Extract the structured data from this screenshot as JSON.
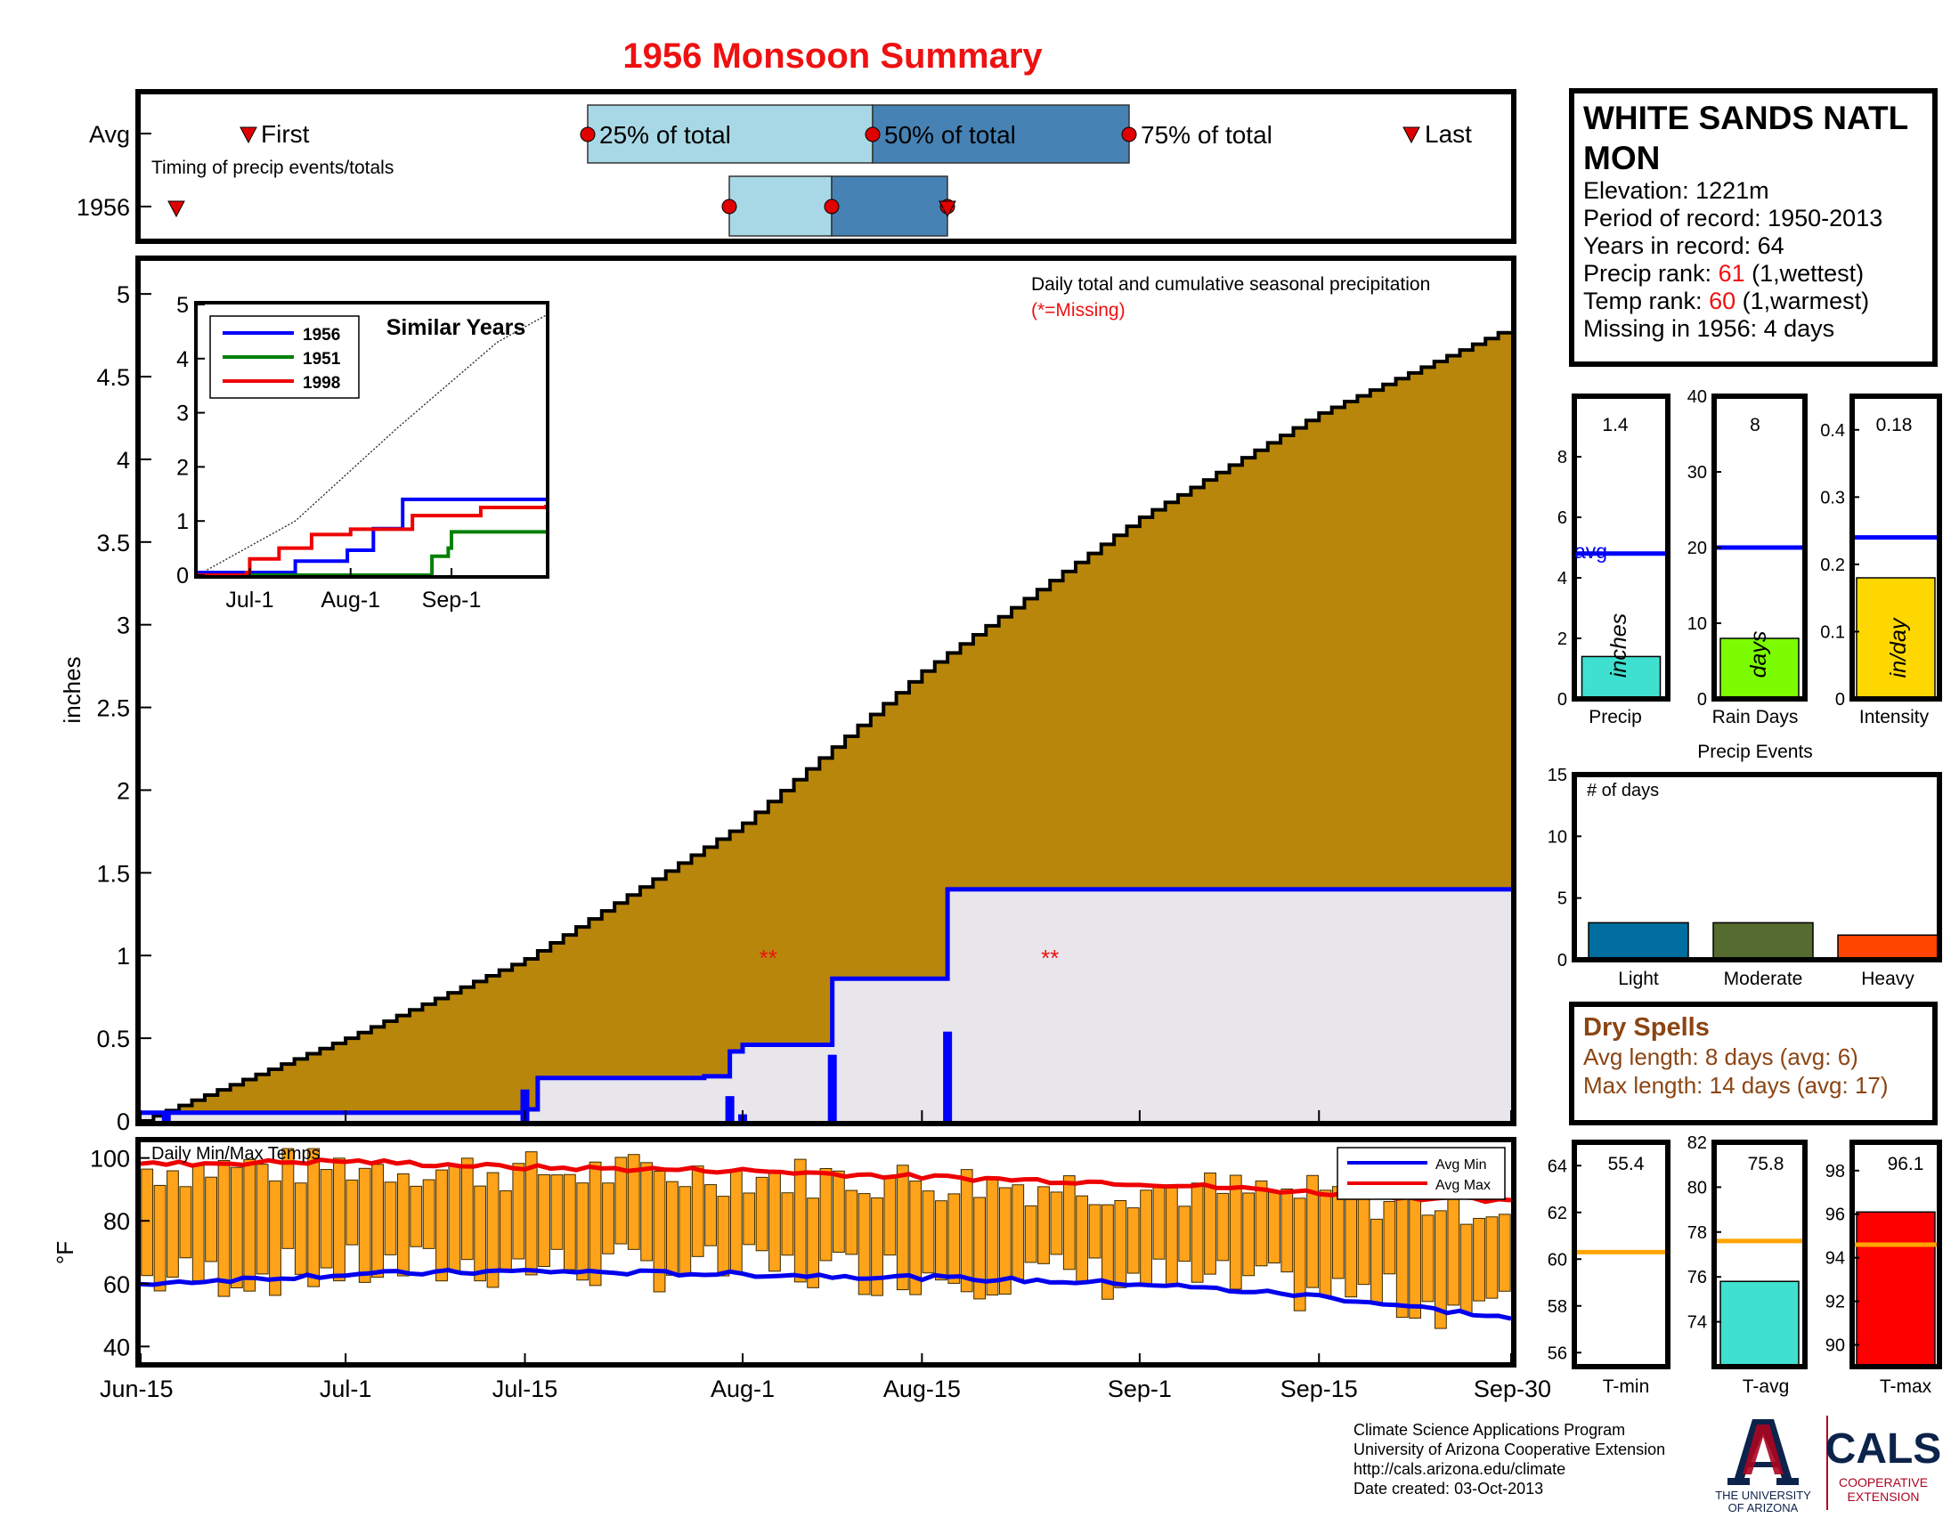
{
  "title": "1956 Monsoon Summary",
  "colors": {
    "title": "#ee1111",
    "accum_fill": "#b8860b",
    "deficit_fill": "#e8e6ea",
    "year_line": "#0000ff",
    "light_blue": "#a8d8e6",
    "steel_blue": "#4682b4",
    "marker": "#e00000",
    "temp_bar": "#ffa31a",
    "avg_max": "#ee0000",
    "avg_min": "#0000ee",
    "dry_spell_text": "#8b4513",
    "rank_red": "#ee1111",
    "precip_bar": "#40e0d0",
    "raindays_bar": "#7cfc00",
    "intensity_bar": "#ffd700",
    "light_event": "#006e9e",
    "moderate_event": "#556b2f",
    "heavy_event": "#ff4500",
    "tavg_bar": "#40e0d0",
    "tmax_bar": "#ff0000",
    "temp_avg_line": "#ffa500",
    "ua_blue": "#0c234b",
    "ua_red": "#ab0520"
  },
  "timing": {
    "row_labels": [
      "Avg",
      "1956"
    ],
    "first_label": "First",
    "last_label": "Last",
    "pct25_label": "25% of total",
    "pct50_label": "50% of total",
    "pct75_label": "75% of total",
    "caption": "Timing of precip events/totals"
  },
  "station": {
    "name": "WHITE SANDS NATL MON",
    "elevation_label": "Elevation: 1221m",
    "period_label": "Period of record: 1950-2013",
    "years_label": "Years in record: 64",
    "precip_rank_prefix": "Precip rank: ",
    "precip_rank": "61",
    "precip_rank_suffix": " (1,wettest)",
    "temp_rank_prefix": "Temp rank: ",
    "temp_rank": "60",
    "temp_rank_suffix": " (1,warmest)",
    "missing_label": "Missing in 1956: 4 days"
  },
  "main_plot": {
    "annotation": "Daily total and cumulative seasonal precipitation",
    "missing_note": "(*=Missing)",
    "missing_marker": "**",
    "ylabel": "inches"
  },
  "inset": {
    "title": "Similar Years",
    "legend": [
      "1956",
      "1951",
      "1998"
    ]
  },
  "temps": {
    "caption": "Daily Min/Max Temps",
    "ylabel": "°F",
    "legend_min": "Avg Min",
    "legend_max": "Avg Max"
  },
  "summary_bars": {
    "precip": {
      "value_label": "1.4",
      "unit": "inches",
      "label": "Precip",
      "avg_label": "avg"
    },
    "raindays": {
      "value_label": "8",
      "unit": "days",
      "label": "Rain Days"
    },
    "intensity": {
      "value_label": "0.18",
      "unit": "in/day",
      "label": "Intensity"
    }
  },
  "events": {
    "title": "Precip Events",
    "ylabel": "# of days",
    "categories": [
      "Light",
      "Moderate",
      "Heavy"
    ]
  },
  "dry_spells": {
    "title": "Dry Spells",
    "avg_length": "Avg length: 8 days (avg: 6)",
    "max_length": "Max length: 14 days (avg: 17)"
  },
  "temp_summary": {
    "tmin": {
      "value_label": "55.4",
      "label": "T-min"
    },
    "tavg": {
      "value_label": "75.8",
      "label": "T-avg"
    },
    "tmax": {
      "value_label": "96.1",
      "label": "T-max"
    }
  },
  "footer": {
    "line1": "Climate Science Applications Program",
    "line2": "University of Arizona Cooperative Extension",
    "line3": "http://cals.arizona.edu/climate",
    "line4": " Date created: 03-Oct-2013",
    "ua_line1": "THE UNIVERSITY",
    "ua_line2": "OF ARIZONA",
    "cals": "CALS",
    "cals_sub1": "COOPERATIVE",
    "cals_sub2": "EXTENSION"
  },
  "chart_data": [
    {
      "type": "area",
      "name": "Daily total and cumulative seasonal precipitation",
      "x_range": [
        "Jun-15",
        "Sep-30"
      ],
      "xticks": [
        "Jun-15",
        "Jul-1",
        "Jul-15",
        "Aug-1",
        "Aug-15",
        "Sep-1",
        "Sep-15",
        "Sep-30"
      ],
      "ylim": [
        0,
        5.2
      ],
      "yticks": [
        0,
        0.5,
        1,
        1.5,
        2,
        2.5,
        3,
        3.5,
        4,
        4.5,
        5
      ],
      "ylabel": "inches",
      "average_cumulative": {
        "dates": [
          "Jun-15",
          "Jul-1",
          "Jul-15",
          "Aug-1",
          "Aug-15",
          "Sep-1",
          "Sep-15",
          "Sep-30"
        ],
        "values": [
          0.0,
          0.5,
          0.98,
          1.8,
          2.72,
          3.65,
          4.28,
          4.8
        ]
      },
      "cumulative_1956": {
        "dates": [
          "Jun-15",
          "Jul-15",
          "Jul-16",
          "Jul-29",
          "Jul-31",
          "Aug-1",
          "Aug-7",
          "Aug-8",
          "Aug-16",
          "Aug-17",
          "Sep-30"
        ],
        "values": [
          0.05,
          0.07,
          0.26,
          0.27,
          0.42,
          0.46,
          0.46,
          0.86,
          0.86,
          1.4,
          1.4
        ]
      },
      "daily_1956": [
        {
          "date": "Jun-17",
          "value": 0.04
        },
        {
          "date": "Jul-15",
          "value": 0.19
        },
        {
          "date": "Jul-31",
          "value": 0.15
        },
        {
          "date": "Aug-1",
          "value": 0.04
        },
        {
          "date": "Aug-8",
          "value": 0.4
        },
        {
          "date": "Aug-17",
          "value": 0.54
        }
      ],
      "missing_marks": [
        {
          "date": "Aug-3",
          "value": 1.0
        },
        {
          "date": "Aug-25",
          "value": 1.0
        }
      ]
    },
    {
      "type": "line",
      "name": "Similar Years",
      "xticks": [
        "Jul-1",
        "Aug-1",
        "Sep-1"
      ],
      "ylim": [
        0,
        5
      ],
      "yticks": [
        0,
        1,
        2,
        3,
        4,
        5
      ],
      "series": [
        {
          "name": "1956",
          "dates": [
            "Jun-15",
            "Jul-15",
            "Jul-31",
            "Aug-8",
            "Aug-17",
            "Sep-30"
          ],
          "values": [
            0.05,
            0.26,
            0.46,
            0.86,
            1.4,
            1.4
          ]
        },
        {
          "name": "1951",
          "dates": [
            "Jun-15",
            "Aug-25",
            "Aug-26",
            "Aug-31",
            "Sep-1",
            "Sep-30"
          ],
          "values": [
            0.0,
            0.0,
            0.35,
            0.5,
            0.8,
            0.8
          ]
        },
        {
          "name": "1998",
          "dates": [
            "Jun-15",
            "Jun-30",
            "Jul-1",
            "Jul-10",
            "Jul-20",
            "Aug-1",
            "Aug-20",
            "Sep-10",
            "Sep-30"
          ],
          "values": [
            0.0,
            0.05,
            0.3,
            0.5,
            0.75,
            0.85,
            1.1,
            1.25,
            1.3
          ]
        }
      ],
      "average_cumulative": {
        "dates": [
          "Jun-15",
          "Jul-15",
          "Aug-15",
          "Sep-15",
          "Sep-30"
        ],
        "values": [
          0.0,
          1.0,
          2.7,
          4.3,
          4.8
        ]
      }
    },
    {
      "type": "bar",
      "name": "Daily Min/Max Temps",
      "ylim": [
        35,
        105
      ],
      "yticks": [
        40,
        60,
        80,
        100
      ],
      "ylabel": "°F",
      "x_range": [
        "Jun-15",
        "Sep-30"
      ],
      "avg_max": {
        "dates": [
          "Jun-15",
          "Jul-1",
          "Jul-15",
          "Aug-1",
          "Aug-15",
          "Sep-1",
          "Sep-15",
          "Sep-30"
        ],
        "values": [
          98,
          99,
          97,
          96,
          94,
          92,
          89,
          86
        ]
      },
      "avg_min": {
        "dates": [
          "Jun-15",
          "Jul-1",
          "Jul-15",
          "Aug-1",
          "Aug-15",
          "Sep-1",
          "Sep-15",
          "Sep-30"
        ],
        "values": [
          60,
          63,
          64,
          63,
          62,
          60,
          56,
          49
        ]
      },
      "daily_max_range": [
        84,
        103
      ],
      "daily_min_range": [
        43,
        67
      ]
    },
    {
      "type": "bar",
      "name": "Precip",
      "values": [
        1.4
      ],
      "average": 4.8,
      "ylim": [
        0,
        10
      ],
      "yticks": [
        0,
        2,
        4,
        6,
        8
      ]
    },
    {
      "type": "bar",
      "name": "Rain Days",
      "values": [
        8
      ],
      "average": 20,
      "ylim": [
        0,
        40
      ],
      "yticks": [
        0,
        10,
        20,
        30,
        40
      ]
    },
    {
      "type": "bar",
      "name": "Intensity",
      "values": [
        0.18
      ],
      "average": 0.24,
      "ylim": [
        0,
        0.45
      ],
      "yticks": [
        0,
        0.1,
        0.2,
        0.3,
        0.4
      ]
    },
    {
      "type": "bar",
      "name": "Precip Events",
      "categories": [
        "Light",
        "Moderate",
        "Heavy"
      ],
      "values": [
        3,
        3,
        2
      ],
      "ylim": [
        0,
        15
      ],
      "yticks": [
        0,
        5,
        10,
        15
      ]
    },
    {
      "type": "bar",
      "name": "T-min",
      "values": [
        55.4
      ],
      "average": 60.3,
      "ylim": [
        55.4,
        65
      ],
      "yticks": [
        56,
        58,
        60,
        62,
        64
      ]
    },
    {
      "type": "bar",
      "name": "T-avg",
      "values": [
        75.8
      ],
      "average": 77.6,
      "ylim": [
        72,
        82
      ],
      "yticks": [
        74,
        76,
        78,
        80,
        82
      ]
    },
    {
      "type": "bar",
      "name": "T-max",
      "values": [
        96.1
      ],
      "average": 94.6,
      "ylim": [
        89,
        99.3
      ],
      "yticks": [
        90,
        92,
        94,
        96,
        98
      ]
    }
  ]
}
